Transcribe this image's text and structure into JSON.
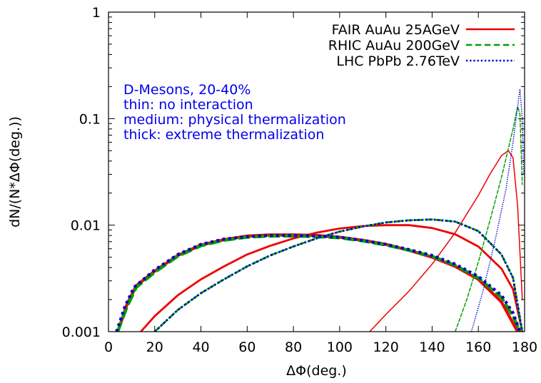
{
  "chart_data": {
    "type": "line",
    "title": "",
    "xlabel": "ΔΦ(deg.)",
    "ylabel": "dN/(N*ΔΦ(deg.))",
    "xlim": [
      0,
      180
    ],
    "ylim": [
      0.001,
      1
    ],
    "yscale": "log",
    "grid": false,
    "legend_position": "top-right",
    "x_ticks": [
      0,
      20,
      40,
      60,
      80,
      100,
      120,
      140,
      160,
      180
    ],
    "x_tick_labels": [
      "0",
      "20",
      "40",
      "60",
      "80",
      "100",
      "120",
      "140",
      "160",
      "180"
    ],
    "y_ticks": [
      0.001,
      0.01,
      0.1,
      1
    ],
    "y_tick_labels": [
      "0.001",
      "0.01",
      "0.1",
      "1"
    ],
    "annotations": [
      "D-Mesons, 20-40%",
      "thin: no interaction",
      "medium: physical thermalization",
      "thick: extreme thermalization"
    ],
    "annotation_color": "#0000ee",
    "series": [
      {
        "name": "FAIR AuAu 25AGeV",
        "color": "#ee0000",
        "dash": "solid",
        "curves": [
          {
            "variant": "no interaction",
            "width": 1.5,
            "points": [
              [
                113,
                0.001
              ],
              [
                120,
                0.00145
              ],
              [
                130,
                0.0024
              ],
              [
                140,
                0.0043
              ],
              [
                150,
                0.0085
              ],
              [
                160,
                0.019
              ],
              [
                165,
                0.03
              ],
              [
                170,
                0.045
              ],
              [
                173,
                0.05
              ],
              [
                175,
                0.043
              ],
              [
                177,
                0.015
              ],
              [
                179,
                0.002
              ]
            ]
          },
          {
            "variant": "physical thermalization",
            "width": 2.8,
            "points": [
              [
                14,
                0.001
              ],
              [
                20,
                0.0014
              ],
              [
                30,
                0.0022
              ],
              [
                40,
                0.0031
              ],
              [
                50,
                0.0041
              ],
              [
                60,
                0.0053
              ],
              [
                70,
                0.0064
              ],
              [
                80,
                0.0075
              ],
              [
                90,
                0.0085
              ],
              [
                100,
                0.0093
              ],
              [
                110,
                0.0098
              ],
              [
                120,
                0.01
              ],
              [
                130,
                0.01
              ],
              [
                140,
                0.0094
              ],
              [
                150,
                0.0082
              ],
              [
                160,
                0.0063
              ],
              [
                170,
                0.0039
              ],
              [
                175,
                0.0025
              ],
              [
                179,
                0.001
              ]
            ]
          },
          {
            "variant": "extreme thermalization",
            "width": 4.2,
            "points": [
              [
                4,
                0.001
              ],
              [
                8,
                0.0018
              ],
              [
                12,
                0.0027
              ],
              [
                20,
                0.0037
              ],
              [
                30,
                0.0052
              ],
              [
                40,
                0.0065
              ],
              [
                50,
                0.0073
              ],
              [
                60,
                0.0079
              ],
              [
                70,
                0.0081
              ],
              [
                80,
                0.0081
              ],
              [
                90,
                0.008
              ],
              [
                100,
                0.0077
              ],
              [
                110,
                0.0072
              ],
              [
                120,
                0.0066
              ],
              [
                130,
                0.0058
              ],
              [
                140,
                0.005
              ],
              [
                150,
                0.0041
              ],
              [
                160,
                0.0031
              ],
              [
                170,
                0.0019
              ],
              [
                175,
                0.0012
              ],
              [
                177,
                0.001
              ]
            ]
          }
        ]
      },
      {
        "name": "RHIC AuAu 200GeV",
        "color": "#00a000",
        "dash": "dashed",
        "curves": [
          {
            "variant": "no interaction",
            "width": 1.5,
            "points": [
              [
                150,
                0.001
              ],
              [
                155,
                0.002
              ],
              [
                160,
                0.0045
              ],
              [
                165,
                0.011
              ],
              [
                170,
                0.028
              ],
              [
                175,
                0.08
              ],
              [
                177,
                0.13
              ],
              [
                178,
                0.11
              ],
              [
                179,
                0.024
              ]
            ]
          },
          {
            "variant": "physical thermalization",
            "width": 2.8,
            "points": [
              [
                20,
                0.001
              ],
              [
                30,
                0.0016
              ],
              [
                40,
                0.0023
              ],
              [
                50,
                0.0031
              ],
              [
                60,
                0.0041
              ],
              [
                70,
                0.0052
              ],
              [
                80,
                0.0063
              ],
              [
                90,
                0.0075
              ],
              [
                100,
                0.0087
              ],
              [
                110,
                0.0097
              ],
              [
                120,
                0.0106
              ],
              [
                130,
                0.0111
              ],
              [
                140,
                0.0113
              ],
              [
                150,
                0.0108
              ],
              [
                160,
                0.0088
              ],
              [
                170,
                0.0053
              ],
              [
                175,
                0.0032
              ],
              [
                179,
                0.001
              ]
            ]
          },
          {
            "variant": "extreme thermalization",
            "width": 4.2,
            "points": [
              [
                4,
                0.001
              ],
              [
                8,
                0.0017
              ],
              [
                12,
                0.0026
              ],
              [
                20,
                0.0036
              ],
              [
                30,
                0.0051
              ],
              [
                40,
                0.0064
              ],
              [
                50,
                0.0072
              ],
              [
                60,
                0.0077
              ],
              [
                70,
                0.0079
              ],
              [
                80,
                0.0079
              ],
              [
                90,
                0.0078
              ],
              [
                100,
                0.0076
              ],
              [
                110,
                0.0071
              ],
              [
                120,
                0.0065
              ],
              [
                130,
                0.0058
              ],
              [
                140,
                0.0051
              ],
              [
                150,
                0.0042
              ],
              [
                160,
                0.0032
              ],
              [
                170,
                0.0021
              ],
              [
                175,
                0.0014
              ],
              [
                178,
                0.001
              ]
            ]
          }
        ]
      },
      {
        "name": "LHC PbPb 2.76TeV",
        "color": "#0000cc",
        "dash": "dotted",
        "curves": [
          {
            "variant": "no interaction",
            "width": 1.5,
            "points": [
              [
                157,
                0.001
              ],
              [
                162,
                0.0024
              ],
              [
                167,
                0.0068
              ],
              [
                172,
                0.022
              ],
              [
                175,
                0.06
              ],
              [
                177,
                0.13
              ],
              [
                178,
                0.19
              ],
              [
                179,
                0.1
              ],
              [
                179.6,
                0.03
              ]
            ]
          },
          {
            "variant": "physical thermalization",
            "width": 2.8,
            "points": [
              [
                20,
                0.001
              ],
              [
                30,
                0.0016
              ],
              [
                40,
                0.0023
              ],
              [
                50,
                0.0031
              ],
              [
                60,
                0.0041
              ],
              [
                70,
                0.0052
              ],
              [
                80,
                0.0063
              ],
              [
                90,
                0.0075
              ],
              [
                100,
                0.0087
              ],
              [
                110,
                0.0097
              ],
              [
                120,
                0.0106
              ],
              [
                130,
                0.0111
              ],
              [
                140,
                0.0113
              ],
              [
                150,
                0.0108
              ],
              [
                160,
                0.0088
              ],
              [
                170,
                0.0053
              ],
              [
                175,
                0.0032
              ],
              [
                179,
                0.001
              ]
            ]
          },
          {
            "variant": "extreme thermalization",
            "width": 4.2,
            "points": [
              [
                3.5,
                0.001
              ],
              [
                7,
                0.0017
              ],
              [
                11,
                0.0026
              ],
              [
                20,
                0.0038
              ],
              [
                30,
                0.0053
              ],
              [
                40,
                0.0066
              ],
              [
                50,
                0.0074
              ],
              [
                60,
                0.0078
              ],
              [
                70,
                0.008
              ],
              [
                80,
                0.008
              ],
              [
                90,
                0.0079
              ],
              [
                100,
                0.0077
              ],
              [
                110,
                0.0072
              ],
              [
                120,
                0.0066
              ],
              [
                130,
                0.0059
              ],
              [
                140,
                0.0052
              ],
              [
                150,
                0.0043
              ],
              [
                160,
                0.0033
              ],
              [
                170,
                0.0022
              ],
              [
                175,
                0.0015
              ],
              [
                178,
                0.001
              ]
            ]
          }
        ]
      }
    ]
  }
}
